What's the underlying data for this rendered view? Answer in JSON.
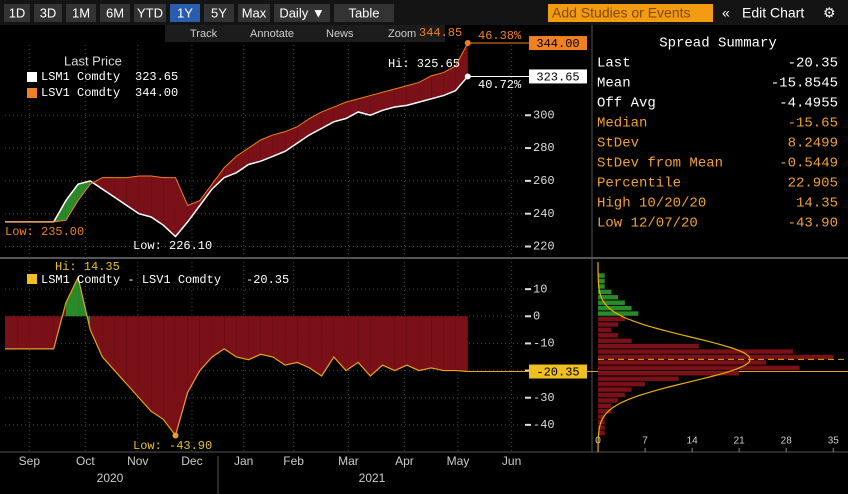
{
  "toolbar": {
    "buttons": [
      "1D",
      "3D",
      "1M",
      "6M",
      "YTD",
      "1Y",
      "5Y",
      "Max",
      "Daily ▼",
      "Table"
    ],
    "active_index": 5,
    "search_placeholder": "Add Studies or Events",
    "collapse": "«",
    "edit": "Edit Chart",
    "settings": "⚙"
  },
  "chart_tools": [
    "Track",
    "Annotate",
    "News",
    "Zoom"
  ],
  "years": [
    "2020",
    "2021"
  ],
  "chart_data": [
    {
      "type": "line",
      "legend_title": "Last Price",
      "x": [
        0,
        1,
        2,
        3,
        4,
        5,
        6,
        7,
        8,
        9,
        10,
        11,
        12,
        13,
        14,
        15,
        16,
        17,
        18,
        19,
        20,
        21,
        22,
        23,
        24,
        25,
        26,
        27,
        28,
        29,
        30,
        31,
        32,
        33,
        34,
        35,
        36,
        37,
        38
      ],
      "series": [
        {
          "name": "LSM1 Comdty",
          "color": "#ffffff",
          "last_label": "323.65",
          "values": [
            235,
            235,
            235,
            235,
            235,
            248,
            258,
            260,
            255,
            250,
            245,
            240,
            238,
            233,
            226.1,
            235,
            245,
            255,
            262,
            265,
            270,
            272,
            275,
            278,
            283,
            288,
            292,
            296,
            298,
            302,
            300,
            303,
            305,
            306,
            308,
            310,
            312,
            315,
            323.65
          ]
        },
        {
          "name": "LSV1 Comdty",
          "color": "#f08020",
          "last_label": "344.00",
          "values": [
            235,
            235,
            235,
            235,
            235,
            236,
            248,
            258,
            262,
            262,
            262,
            263,
            263,
            262,
            262,
            245,
            248,
            258,
            268,
            275,
            280,
            285,
            288,
            290,
            293,
            298,
            302,
            305,
            308,
            310,
            312,
            314,
            316,
            318,
            320,
            324,
            326,
            330,
            344
          ]
        }
      ],
      "fill_color": "#7a1018",
      "fill_positive_color": "#2a8a2a",
      "annotations": [
        "Hi: 325.65",
        "344.85",
        "46.38%",
        "40.72%",
        "Low: 226.10",
        "Low: 235.00"
      ],
      "xlim": [
        0,
        42.7
      ],
      "ylim": [
        213,
        355
      ],
      "yticks": [
        220,
        240,
        260,
        280,
        300
      ]
    },
    {
      "type": "area",
      "legend_title": "LSM1 Comdty - LSV1 Comdty",
      "x": [
        0,
        1,
        2,
        3,
        4,
        5,
        6,
        7,
        8,
        9,
        10,
        11,
        12,
        13,
        14,
        15,
        16,
        17,
        18,
        19,
        20,
        21,
        22,
        23,
        24,
        25,
        26,
        27,
        28,
        29,
        30,
        31,
        32,
        33,
        34,
        35,
        36,
        37,
        38
      ],
      "series": [
        {
          "name": "LSM1 Comdty - LSV1 Comdty",
          "color": "#e8a020",
          "values": [
            -12,
            -12,
            -12,
            -12,
            -12,
            5,
            14.35,
            -5,
            -15,
            -20,
            -25,
            -30,
            -35,
            -38,
            -43.9,
            -28,
            -20,
            -15,
            -12,
            -15,
            -16,
            -14,
            -15,
            -18,
            -17,
            -19,
            -22,
            -15,
            -20,
            -17,
            -22,
            -18,
            -20,
            -18,
            -20,
            -19,
            -20,
            -20,
            -20.35
          ]
        }
      ],
      "fill_color": "#7a1018",
      "fill_positive_color": "#2a8a2a",
      "annotations": [
        "Hi: 14.35",
        "Low: -43.90"
      ],
      "xlim": [
        0,
        42.7
      ],
      "ylim": [
        -50,
        20
      ],
      "yticks": [
        -40,
        -30,
        -20,
        -10,
        0,
        10
      ],
      "xticks": [
        {
          "value": 2,
          "label": "Sep"
        },
        {
          "value": 6.6,
          "label": "Oct"
        },
        {
          "value": 10.9,
          "label": "Nov"
        },
        {
          "value": 15.35,
          "label": "Dec"
        },
        {
          "value": 19.6,
          "label": "Jan"
        },
        {
          "value": 23.7,
          "label": "Feb"
        },
        {
          "value": 28.2,
          "label": "Mar"
        },
        {
          "value": 32.8,
          "label": "Apr"
        },
        {
          "value": 37.2,
          "label": "May"
        },
        {
          "value": 41.6,
          "label": "Jun"
        }
      ]
    },
    {
      "type": "histogram",
      "orientation": "horizontal",
      "bins": [
        -44,
        -42,
        -40,
        -38,
        -36,
        -34,
        -32,
        -30,
        -28,
        -26,
        -24,
        -22,
        -20,
        -18,
        -16,
        -14,
        -12,
        -10,
        -8,
        -6,
        -4,
        -2,
        0,
        2,
        4,
        6,
        8,
        10,
        12,
        14,
        16
      ],
      "counts": [
        1,
        1,
        1,
        1,
        2,
        2,
        3,
        4,
        5,
        7,
        12,
        21,
        30,
        25,
        35,
        29,
        15,
        5,
        3,
        2,
        3,
        4,
        6,
        5,
        4,
        3,
        2,
        1,
        1,
        1
      ],
      "color": "#7a1018",
      "positive_color": "#2a8a2a",
      "curve_color": "#e8b000",
      "xlim": [
        0,
        36
      ],
      "xticks": [
        0,
        7,
        14,
        21,
        28,
        35
      ]
    }
  ],
  "summary": {
    "title": "Spread Summary",
    "rows": [
      {
        "label": "Last",
        "value": "-20.35",
        "color": "#ffffff"
      },
      {
        "label": "Mean",
        "value": "-15.8545",
        "color": "#ffffff"
      },
      {
        "label": "Off Avg",
        "value": "-4.4955",
        "color": "#ffffff"
      },
      {
        "label": "Median",
        "value": "-15.65",
        "color": "#f0a030"
      },
      {
        "label": "StDev",
        "value": "8.2499",
        "color": "#f0a030"
      },
      {
        "label": "StDev from Mean",
        "value": "-0.5449",
        "color": "#f0a030"
      },
      {
        "label": "Percentile",
        "value": "22.905",
        "color": "#f0a030"
      },
      {
        "label": "High 10/20/20",
        "value": "14.35",
        "color": "#f0a030"
      },
      {
        "label": "Low 12/07/20",
        "value": "-43.90",
        "color": "#f0a030"
      }
    ]
  }
}
